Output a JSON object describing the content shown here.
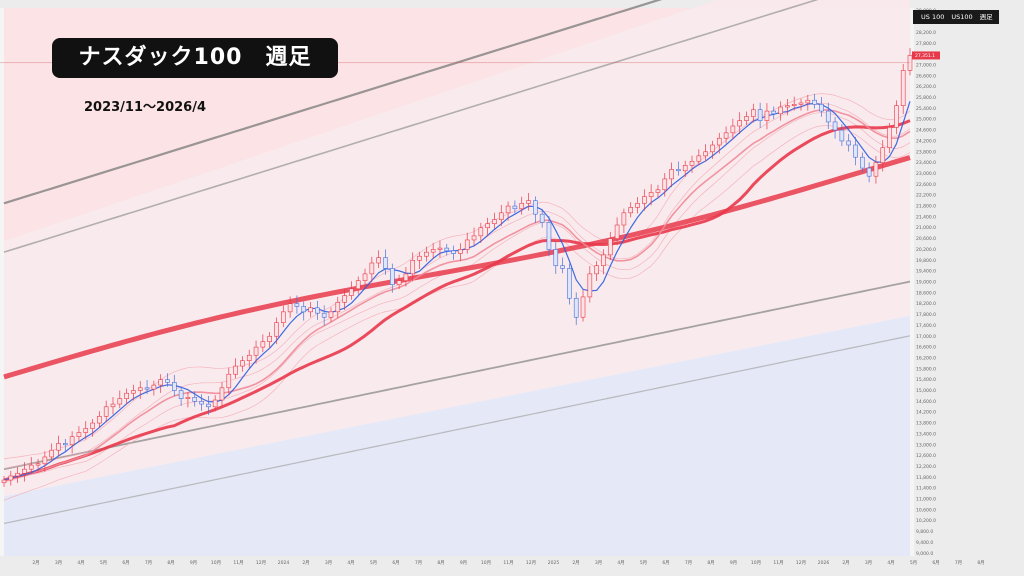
{
  "header": {
    "title": "ナスダック100　週足",
    "period": "2023/11〜2026/4",
    "symbol_items": [
      "US 100",
      "US100",
      "週足"
    ]
  },
  "colors": {
    "upper_band_fill": "#fbe3e6",
    "lower_band_fill": "#e4e8f7",
    "ma_red": "#e8394a",
    "ma_blue": "#2b5de0",
    "candle_up": "#e8394a",
    "candle_down": "#4a6fd8",
    "grid_gray": "#8a8a8a"
  },
  "chart_data": {
    "type": "candlestick",
    "title": "ナスダック100　週足",
    "subtitle": "2023/11〜2026/4",
    "y_axis_ticks": [
      9000,
      9400,
      9800,
      10200,
      10600,
      11000,
      11400,
      11800,
      12200,
      12600,
      13000,
      13400,
      13800,
      14200,
      14600,
      15000,
      15400,
      15800,
      16200,
      16600,
      17000,
      17400,
      17800,
      18200,
      18600,
      19000,
      19400,
      19800,
      20200,
      20600,
      21000,
      21400,
      21800,
      22200,
      22600,
      23000,
      23400,
      23800,
      24200,
      24600,
      25000,
      25400,
      25800,
      26200,
      26600,
      27000,
      27400,
      27800,
      28200,
      28600,
      29000
    ],
    "y_tick_labels": [
      "9,000.0",
      "9,400.0",
      "9,800.0",
      "10,200.0",
      "10,600.0",
      "11,000.0",
      "11,400.0",
      "11,800.0",
      "12,200.0",
      "12,600.0",
      "13,000.0",
      "13,400.0",
      "13,800.0",
      "14,200.0",
      "14,600.0",
      "15,000.0",
      "15,400.0",
      "15,800.0",
      "16,200.0",
      "16,600.0",
      "17,000.0",
      "17,400.0",
      "17,800.0",
      "18,200.0",
      "18,600.0",
      "19,000.0",
      "19,400.0",
      "19,800.0",
      "20,200.0",
      "20,600.0",
      "21,000.0",
      "21,400.0",
      "21,800.0",
      "22,200.0",
      "22,600.0",
      "23,000.0",
      "23,400.0",
      "23,800.0",
      "24,200.0",
      "24,600.0",
      "25,000.0",
      "25,400.0",
      "25,800.0",
      "26,200.0",
      "26,600.0",
      "27,000.0",
      "27,400.0",
      "27,800.0",
      "28,200.0",
      "28,600.0",
      "29,000.0"
    ],
    "ylim": [
      8900,
      29100
    ],
    "x_tick_labels": [
      "2月",
      "3月",
      "4月",
      "5月",
      "6月",
      "7月",
      "8月",
      "9月",
      "10月",
      "11月",
      "12月",
      "2024",
      "2月",
      "3月",
      "4月",
      "5月",
      "6月",
      "7月",
      "8月",
      "9月",
      "10月",
      "11月",
      "12月",
      "2025",
      "2月",
      "3月",
      "4月",
      "5月",
      "6月",
      "7月",
      "8月",
      "9月",
      "10月",
      "11月",
      "12月",
      "2026",
      "2月",
      "3月",
      "4月",
      "5月",
      "6月",
      "7月",
      "8月"
    ],
    "current_price_label": "27,351.1",
    "current_price": 27351,
    "weekly_closes": [
      11700,
      11850,
      11950,
      12100,
      12250,
      12300,
      12550,
      12800,
      13050,
      13000,
      13300,
      13450,
      13600,
      13800,
      14050,
      14400,
      14500,
      14700,
      14900,
      15000,
      15100,
      15050,
      15200,
      15400,
      15300,
      15000,
      14700,
      14750,
      14600,
      14500,
      14400,
      14650,
      15100,
      15600,
      15900,
      16100,
      16300,
      16600,
      16800,
      17000,
      17500,
      17900,
      18200,
      18100,
      17900,
      18050,
      17850,
      17700,
      17900,
      18250,
      18500,
      18750,
      19050,
      19300,
      19700,
      19900,
      19500,
      18900,
      19050,
      19300,
      19800,
      19950,
      20100,
      20200,
      20250,
      20150,
      20050,
      20200,
      20550,
      20700,
      21000,
      21150,
      21300,
      21550,
      21800,
      21700,
      21900,
      22000,
      21500,
      21200,
      20200,
      19600,
      19500,
      18400,
      17700,
      18450,
      19300,
      19600,
      20000,
      20600,
      21100,
      21550,
      21750,
      21900,
      22150,
      22300,
      22400,
      22800,
      23150,
      23100,
      23300,
      23450,
      23650,
      23800,
      24050,
      24300,
      24500,
      24750,
      24950,
      25100,
      25350,
      24950,
      25300,
      25200,
      25450,
      25500,
      25550,
      25600,
      25700,
      25550,
      25300,
      24900,
      24600,
      24200,
      24050,
      23600,
      23200,
      22900,
      23400,
      23950,
      24700,
      25500,
      26800,
      27351
    ],
    "annotations": {
      "horizontal_line": 27080
    }
  }
}
